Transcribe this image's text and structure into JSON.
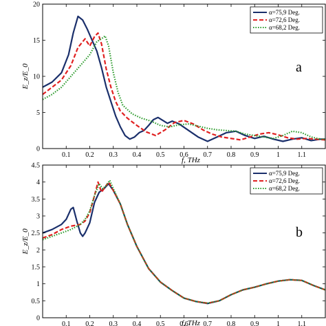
{
  "chart_data": [
    {
      "type": "line",
      "panel_label": "a",
      "xlabel": "f, THz",
      "ylabel": "E_z/E_0",
      "xlim": [
        0,
        1.2
      ],
      "ylim": [
        0,
        20
      ],
      "xticks": [
        "0.1",
        "0.2",
        "0.3",
        "0.4",
        "0.5",
        "0.6",
        "0.7",
        "0.8",
        "0.9",
        "1",
        "1.1"
      ],
      "yticks": [
        "0",
        "5",
        "10",
        "15",
        "20"
      ],
      "legend_position": "top-right",
      "series": [
        {
          "name": "α=75,9 Deg.",
          "color": "#1a2f6b",
          "dash": "solid",
          "x": [
            0,
            0.04,
            0.08,
            0.11,
            0.13,
            0.15,
            0.17,
            0.19,
            0.21,
            0.23,
            0.25,
            0.27,
            0.29,
            0.31,
            0.33,
            0.35,
            0.37,
            0.39,
            0.41,
            0.43,
            0.45,
            0.47,
            0.49,
            0.51,
            0.53,
            0.55,
            0.58,
            0.62,
            0.66,
            0.7,
            0.74,
            0.78,
            0.82,
            0.86,
            0.9,
            0.94,
            0.98,
            1.02,
            1.06,
            1.1,
            1.14,
            1.18,
            1.2
          ],
          "y": [
            8.5,
            9.2,
            10.5,
            13,
            16,
            18.3,
            17.8,
            16.5,
            15,
            13.5,
            11.2,
            8.5,
            6.5,
            4.5,
            3,
            1.8,
            1.3,
            1.6,
            2.2,
            2.5,
            3.2,
            4,
            4.3,
            3.9,
            3.5,
            3.8,
            3.4,
            2.5,
            1.6,
            1.0,
            1.6,
            2.2,
            2.4,
            1.8,
            1.4,
            1.7,
            1.3,
            1.0,
            1.3,
            1.5,
            1.1,
            1.3,
            1.3
          ]
        },
        {
          "name": "α=72,6 Deg.",
          "color": "#e02020",
          "dash": "dashed",
          "x": [
            0,
            0.04,
            0.08,
            0.12,
            0.15,
            0.18,
            0.2,
            0.22,
            0.235,
            0.25,
            0.27,
            0.29,
            0.31,
            0.33,
            0.36,
            0.4,
            0.44,
            0.48,
            0.52,
            0.56,
            0.6,
            0.64,
            0.68,
            0.72,
            0.76,
            0.8,
            0.84,
            0.88,
            0.92,
            0.96,
            1.0,
            1.04,
            1.08,
            1.12,
            1.16,
            1.2
          ],
          "y": [
            7.5,
            8.5,
            9.5,
            11.5,
            14,
            15.2,
            14.2,
            15.5,
            16,
            14.5,
            11,
            8.5,
            6.5,
            5.2,
            4.2,
            3.2,
            2.3,
            1.8,
            2.6,
            3.6,
            3.9,
            3.4,
            2.6,
            2.0,
            1.6,
            1.4,
            1.2,
            1.6,
            2.0,
            2.2,
            1.9,
            1.5,
            1.3,
            1.4,
            1.3,
            1.2
          ]
        },
        {
          "name": "α=68,2 Deg.",
          "color": "#2a9a2a",
          "dash": "dotted",
          "x": [
            0,
            0.04,
            0.08,
            0.12,
            0.16,
            0.2,
            0.23,
            0.25,
            0.265,
            0.28,
            0.3,
            0.32,
            0.34,
            0.38,
            0.42,
            0.46,
            0.5,
            0.54,
            0.58,
            0.62,
            0.66,
            0.7,
            0.74,
            0.78,
            0.82,
            0.86,
            0.9,
            0.94,
            0.98,
            1.02,
            1.06,
            1.1,
            1.14,
            1.18,
            1.2
          ],
          "y": [
            6.8,
            7.5,
            8.5,
            10,
            11.5,
            13,
            14.8,
            15.2,
            15.6,
            14.2,
            10.5,
            7.8,
            6,
            4.8,
            4.2,
            3.8,
            3.2,
            3.0,
            3.3,
            3.4,
            3.1,
            2.8,
            2.6,
            2.5,
            2.4,
            2.0,
            1.8,
            1.6,
            1.4,
            1.8,
            2.4,
            2.2,
            1.6,
            1.3,
            1.3
          ]
        }
      ]
    },
    {
      "type": "line",
      "panel_label": "b",
      "xlabel": "f, THz",
      "ylabel": "E_z/E_0",
      "xlim": [
        0,
        1.2
      ],
      "ylim": [
        0,
        4.5
      ],
      "xticks": [
        "0.1",
        "0.2",
        "0.3",
        "0.4",
        "0.5",
        "0.6",
        "0.7",
        "0.8",
        "0.9",
        "1",
        "1.1"
      ],
      "yticks": [
        "0",
        "0.5",
        "1",
        "1.5",
        "2",
        "2.5",
        "3",
        "3.5",
        "4",
        "4.5"
      ],
      "legend_position": "top-right",
      "series": [
        {
          "name": "α=75,9 Deg.",
          "color": "#1a2f6b",
          "dash": "solid",
          "x": [
            0,
            0.04,
            0.08,
            0.1,
            0.12,
            0.13,
            0.145,
            0.16,
            0.17,
            0.18,
            0.2,
            0.22,
            0.24,
            0.26,
            0.28,
            0.3,
            0.33,
            0.36,
            0.4,
            0.45,
            0.5,
            0.55,
            0.6,
            0.65,
            0.7,
            0.75,
            0.8,
            0.85,
            0.9,
            0.95,
            1.0,
            1.05,
            1.1,
            1.15,
            1.2
          ],
          "y": [
            2.5,
            2.6,
            2.75,
            2.9,
            3.2,
            3.25,
            2.85,
            2.5,
            2.4,
            2.5,
            2.8,
            3.4,
            3.7,
            3.8,
            3.95,
            3.75,
            3.35,
            2.75,
            2.1,
            1.45,
            1.05,
            0.8,
            0.58,
            0.48,
            0.42,
            0.5,
            0.68,
            0.82,
            0.9,
            1.0,
            1.08,
            1.12,
            1.1,
            0.95,
            0.82
          ]
        },
        {
          "name": "α=72,6 Deg.",
          "color": "#e02020",
          "dash": "dashed",
          "x": [
            0,
            0.04,
            0.08,
            0.12,
            0.16,
            0.18,
            0.2,
            0.22,
            0.235,
            0.25,
            0.265,
            0.28,
            0.3,
            0.33,
            0.36,
            0.4,
            0.45,
            0.5,
            0.55,
            0.6,
            0.65,
            0.7,
            0.75,
            0.8,
            0.85,
            0.9,
            0.95,
            1.0,
            1.05,
            1.1,
            1.15,
            1.2
          ],
          "y": [
            2.35,
            2.45,
            2.6,
            2.7,
            2.75,
            2.85,
            3.1,
            3.6,
            4.0,
            3.7,
            3.85,
            4.0,
            3.75,
            3.35,
            2.75,
            2.1,
            1.45,
            1.05,
            0.8,
            0.58,
            0.48,
            0.43,
            0.5,
            0.68,
            0.82,
            0.9,
            1.0,
            1.08,
            1.12,
            1.1,
            0.95,
            0.82
          ]
        },
        {
          "name": "α=68,2 Deg.",
          "color": "#2a9a2a",
          "dash": "dotted",
          "x": [
            0,
            0.04,
            0.08,
            0.12,
            0.16,
            0.18,
            0.2,
            0.22,
            0.24,
            0.255,
            0.27,
            0.285,
            0.3,
            0.33,
            0.36,
            0.4,
            0.45,
            0.5,
            0.55,
            0.6,
            0.65,
            0.7,
            0.75,
            0.8,
            0.85,
            0.9,
            0.95,
            1.0,
            1.05,
            1.1,
            1.15,
            1.2
          ],
          "y": [
            2.3,
            2.4,
            2.5,
            2.6,
            2.75,
            2.9,
            3.15,
            3.6,
            3.95,
            3.8,
            3.9,
            4.05,
            3.8,
            3.35,
            2.75,
            2.1,
            1.45,
            1.05,
            0.8,
            0.58,
            0.48,
            0.43,
            0.5,
            0.68,
            0.82,
            0.9,
            1.0,
            1.08,
            1.12,
            1.1,
            0.95,
            0.82
          ]
        }
      ]
    }
  ]
}
